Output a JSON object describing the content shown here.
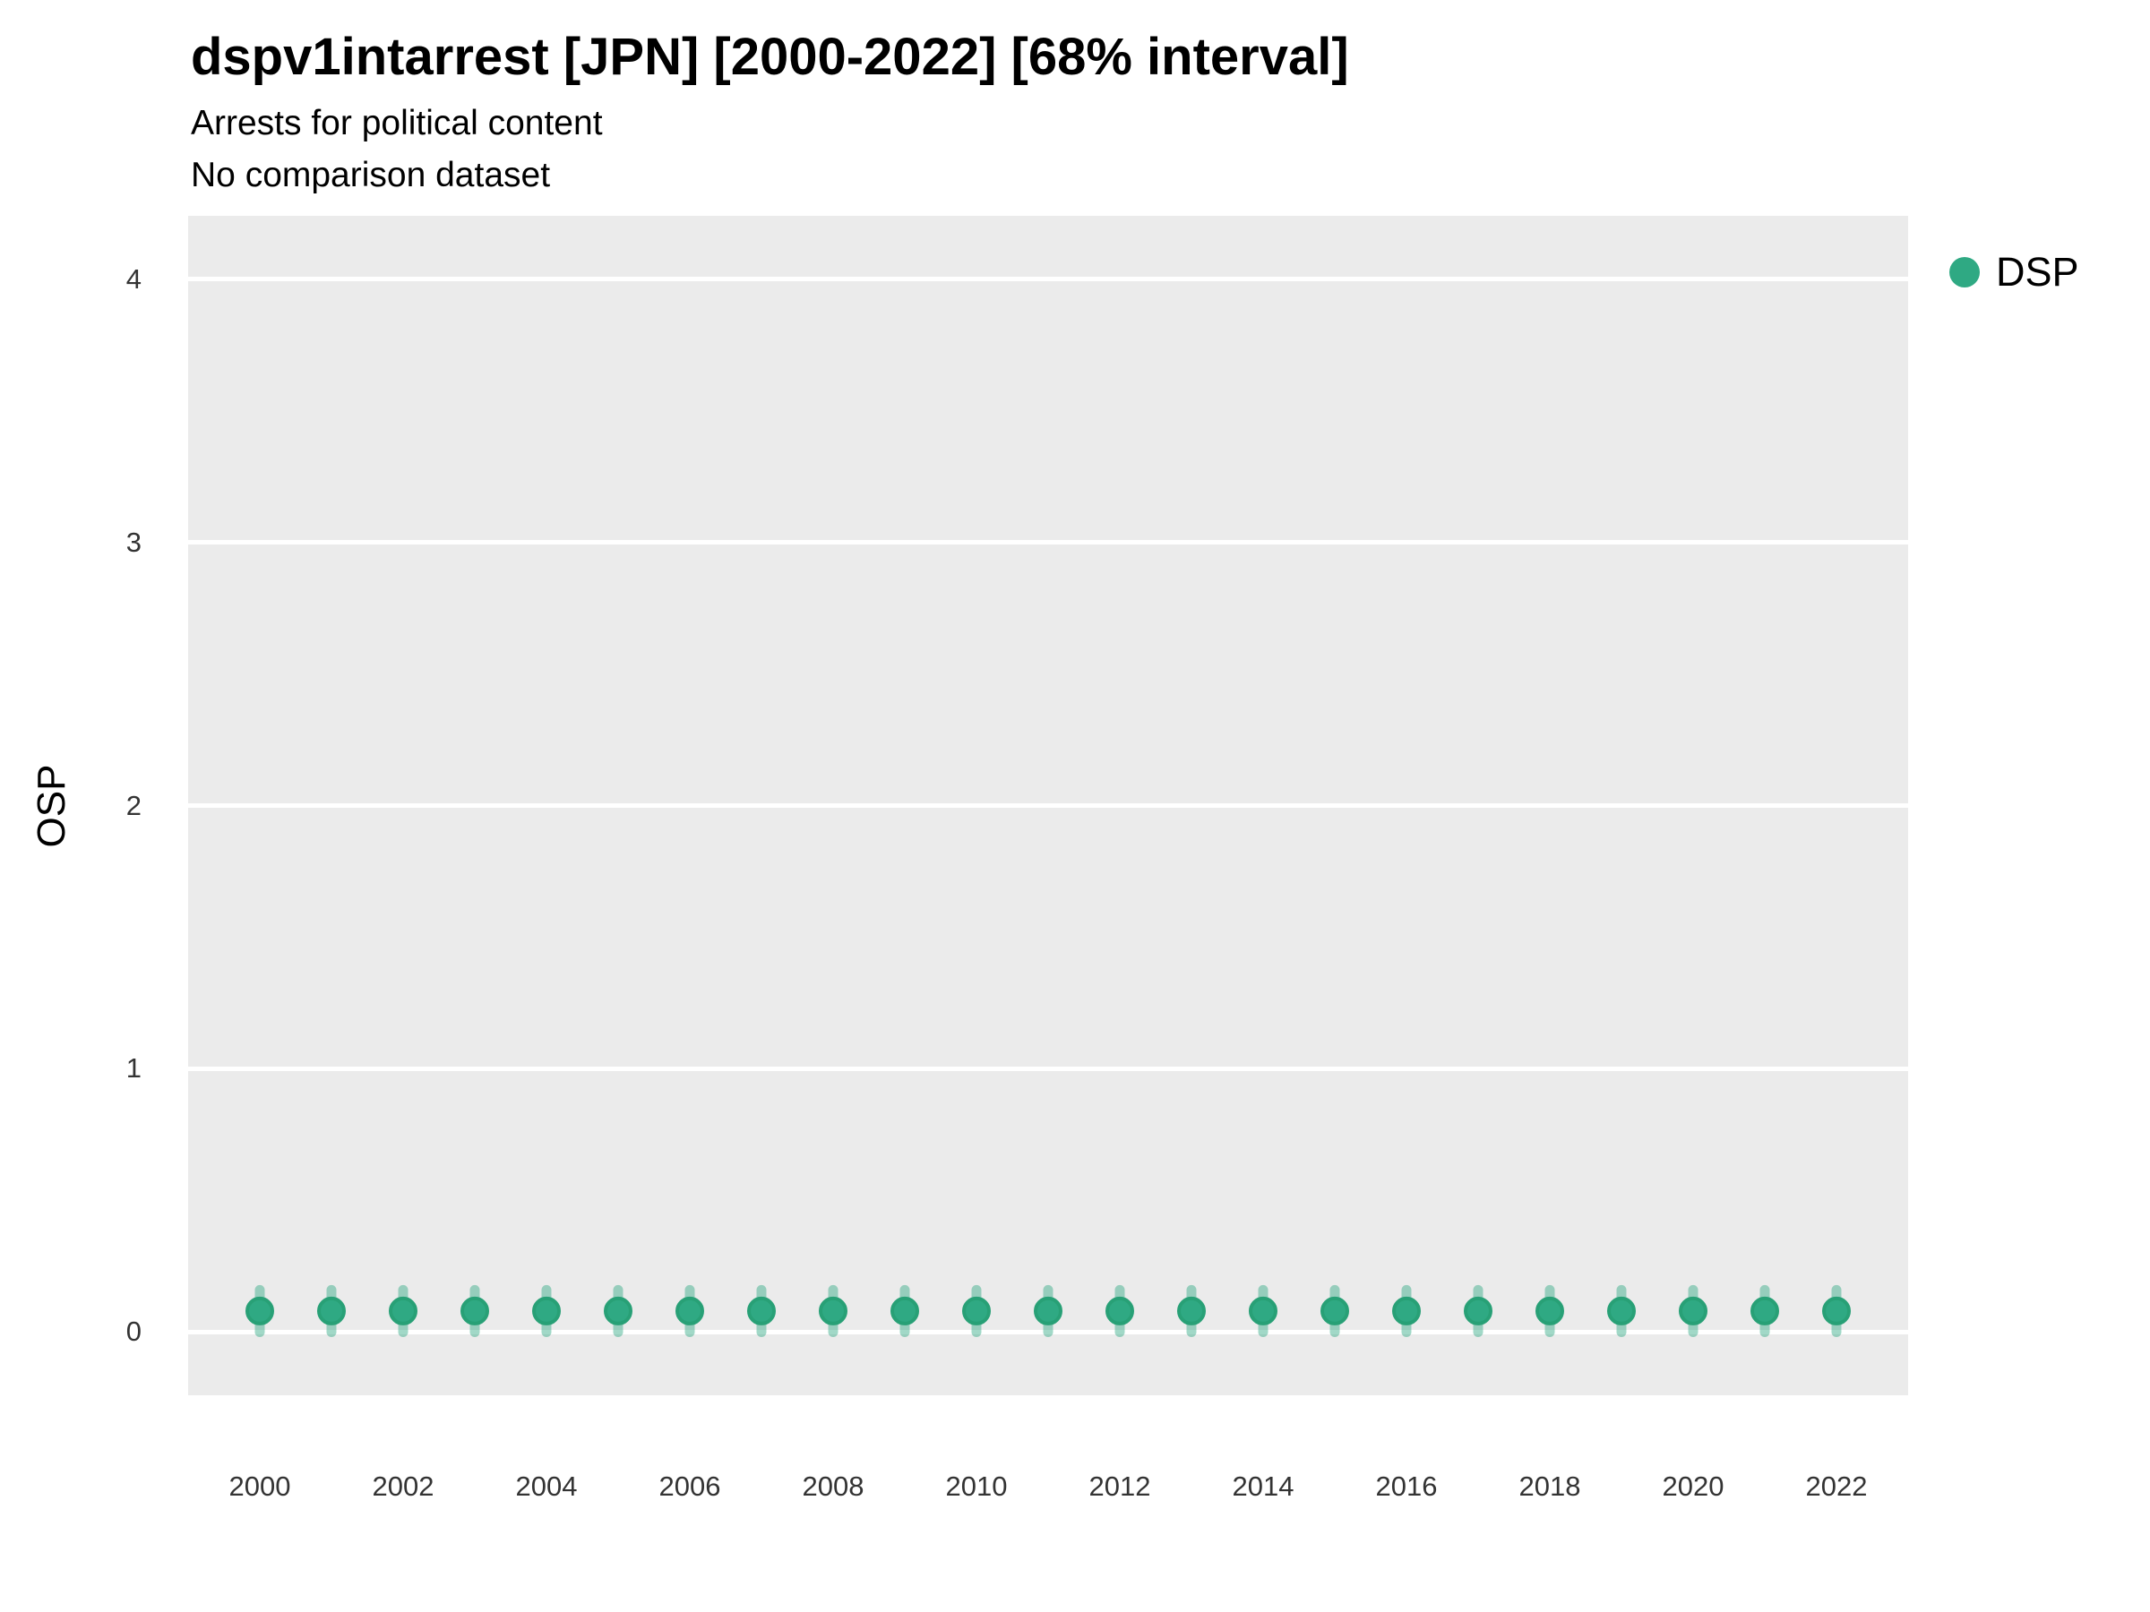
{
  "chart_data": {
    "type": "scatter",
    "title": "dspv1intarrest [JPN] [2000-2022] [68% interval]",
    "subtitle": "Arrests for political content",
    "subtitle2": "No comparison dataset",
    "xlabel": "",
    "ylabel": "OSP",
    "xlim": [
      1999,
      2023
    ],
    "ylim": [
      -0.24,
      4.24
    ],
    "yticks": [
      0,
      1,
      2,
      3,
      4
    ],
    "xticks": [
      2000,
      2002,
      2004,
      2006,
      2008,
      2010,
      2012,
      2014,
      2016,
      2018,
      2020,
      2022
    ],
    "grid": "horizontal-major-only",
    "legend_position": "right",
    "colors": {
      "panel_background": "#EBEBEB",
      "gridline": "#FFFFFF",
      "point_fill": "#2FA983",
      "point_stroke": "#28A076",
      "interval_bar": "rgba(47,169,131,0.45)",
      "text": "#000000",
      "tick_text": "#333333"
    },
    "series": [
      {
        "name": "DSP",
        "interval_level": "68%",
        "x": [
          2000,
          2001,
          2002,
          2003,
          2004,
          2005,
          2006,
          2007,
          2008,
          2009,
          2010,
          2011,
          2012,
          2013,
          2014,
          2015,
          2016,
          2017,
          2018,
          2019,
          2020,
          2021,
          2022
        ],
        "values": [
          0.08,
          0.08,
          0.08,
          0.08,
          0.08,
          0.08,
          0.08,
          0.08,
          0.08,
          0.08,
          0.08,
          0.08,
          0.08,
          0.08,
          0.08,
          0.08,
          0.08,
          0.08,
          0.08,
          0.08,
          0.08,
          0.08,
          0.08
        ],
        "interval_low": [
          0.0,
          0.0,
          0.0,
          0.0,
          0.0,
          0.0,
          0.0,
          0.0,
          0.0,
          0.0,
          0.0,
          0.0,
          0.0,
          0.0,
          0.0,
          0.0,
          0.0,
          0.0,
          0.0,
          0.0,
          0.0,
          0.0,
          0.0
        ],
        "interval_high": [
          0.16,
          0.16,
          0.16,
          0.16,
          0.16,
          0.16,
          0.16,
          0.16,
          0.16,
          0.16,
          0.16,
          0.16,
          0.16,
          0.16,
          0.16,
          0.16,
          0.16,
          0.16,
          0.16,
          0.16,
          0.16,
          0.16,
          0.16
        ]
      }
    ]
  }
}
